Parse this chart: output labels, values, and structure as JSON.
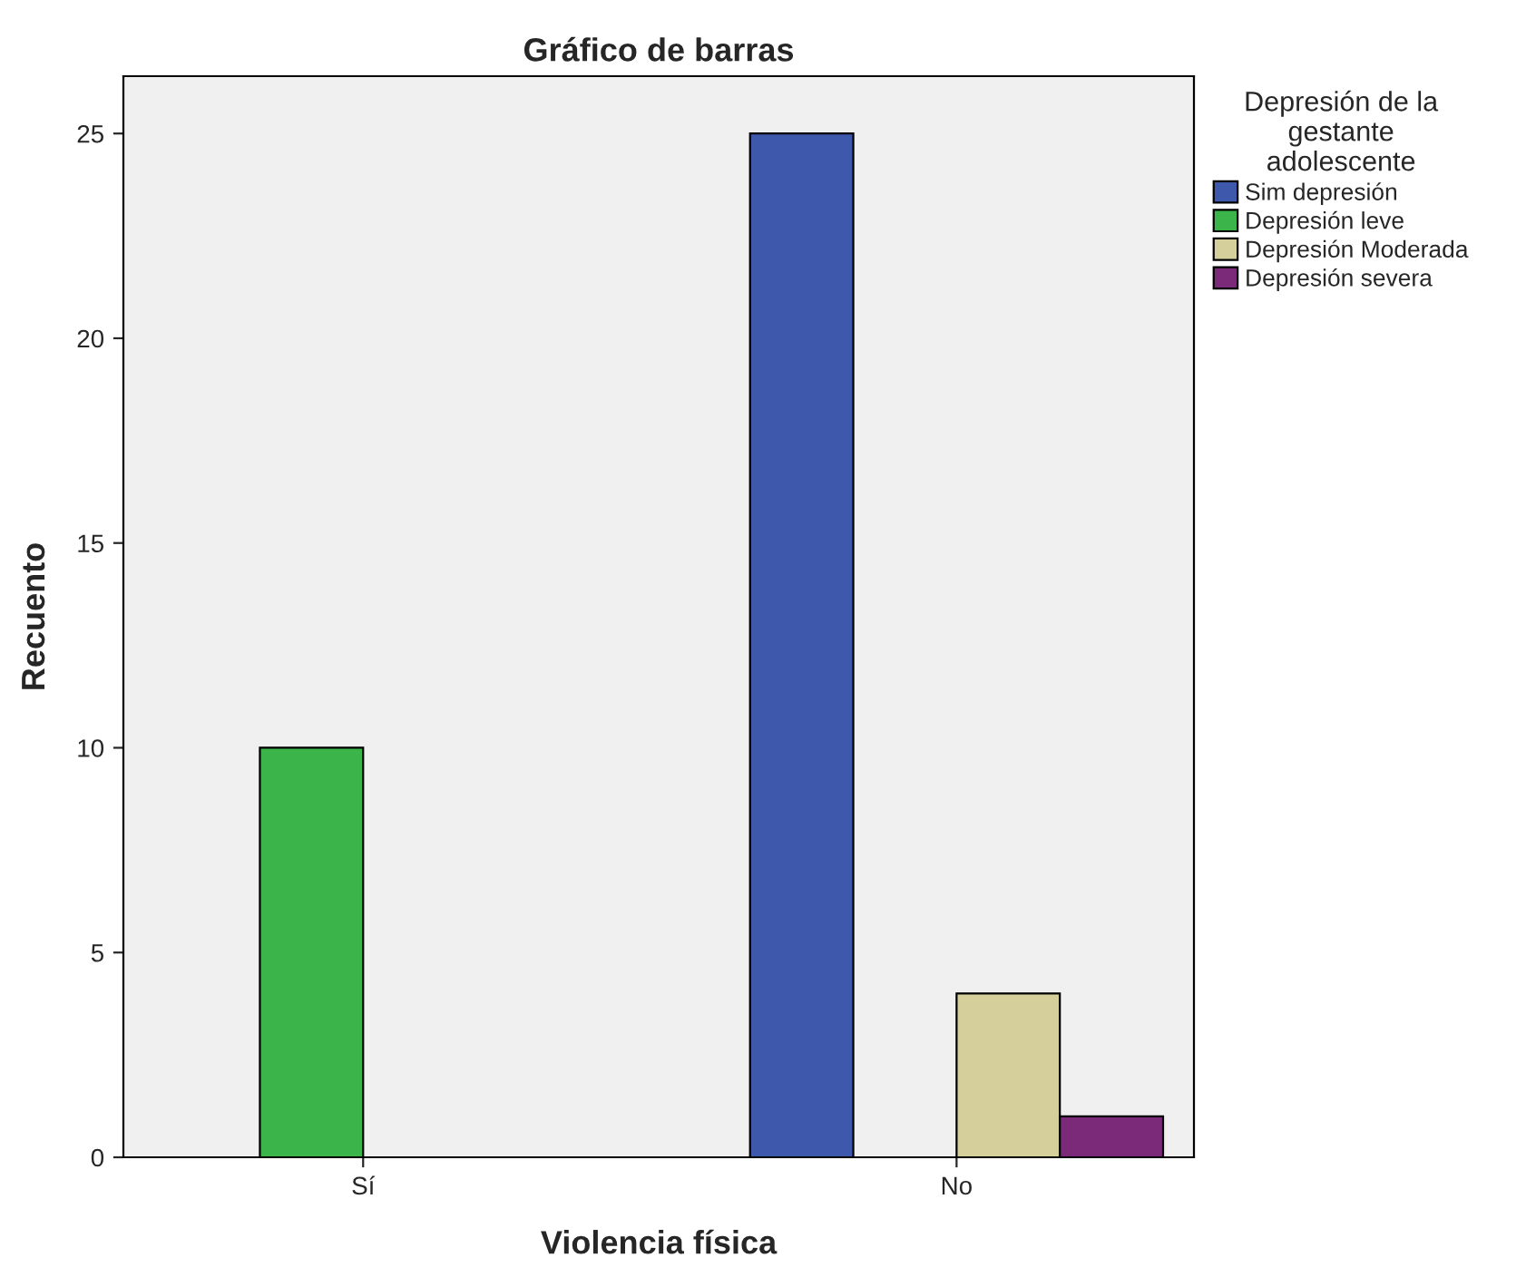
{
  "chart_data": {
    "type": "bar",
    "title": "Gráfico de barras",
    "xlabel": "Violencia física",
    "ylabel": "Recuento",
    "legend_title": "Depresión de la\ngestante\nadolescente",
    "categories": [
      "Sí",
      "No"
    ],
    "series": [
      {
        "name": "Sim depresión",
        "color": "#3e58ac",
        "values": [
          null,
          25
        ]
      },
      {
        "name": "Depresión leve",
        "color": "#3bb44a",
        "values": [
          10,
          null
        ]
      },
      {
        "name": "Depresión Moderada",
        "color": "#d5d09b",
        "values": [
          null,
          4
        ]
      },
      {
        "name": "Depresión severa",
        "color": "#7a2a78",
        "values": [
          null,
          1
        ]
      }
    ],
    "ylim": [
      0,
      26.4
    ],
    "yticks": [
      0,
      5,
      10,
      15,
      20,
      25
    ],
    "grid": false,
    "legend": "top right"
  }
}
